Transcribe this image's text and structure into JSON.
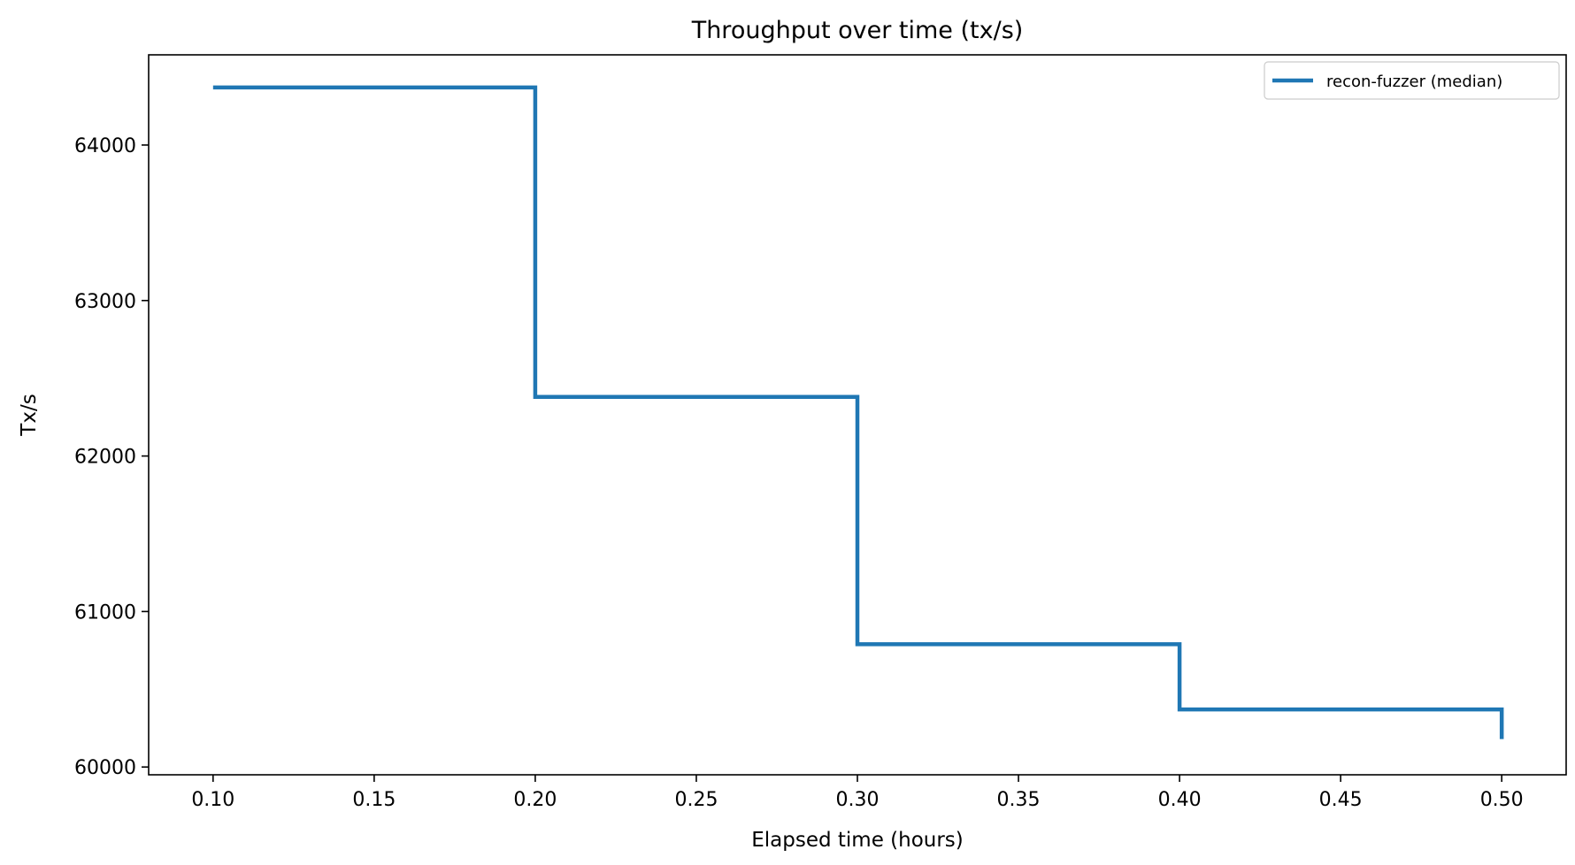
{
  "chart_data": {
    "type": "line",
    "drawstyle": "steps-post",
    "title": "Throughput over time (tx/s)",
    "xlabel": "Elapsed time (hours)",
    "ylabel": "Tx/s",
    "xlim": [
      0.08,
      0.52
    ],
    "ylim": [
      59950,
      64580
    ],
    "xticks": [
      0.1,
      0.15,
      0.2,
      0.25,
      0.3,
      0.35,
      0.4,
      0.45,
      0.5
    ],
    "xtick_labels": [
      "0.10",
      "0.15",
      "0.20",
      "0.25",
      "0.30",
      "0.35",
      "0.40",
      "0.45",
      "0.50"
    ],
    "yticks": [
      60000,
      61000,
      62000,
      63000,
      64000
    ],
    "ytick_labels": [
      "60000",
      "61000",
      "62000",
      "63000",
      "64000"
    ],
    "grid": false,
    "legend": "top-right",
    "series": [
      {
        "name": "recon-fuzzer (median)",
        "color": "#1f77b4",
        "x": [
          0.1,
          0.2,
          0.3,
          0.4,
          0.5
        ],
        "y": [
          64370,
          62380,
          60790,
          60370,
          60180
        ]
      }
    ]
  }
}
